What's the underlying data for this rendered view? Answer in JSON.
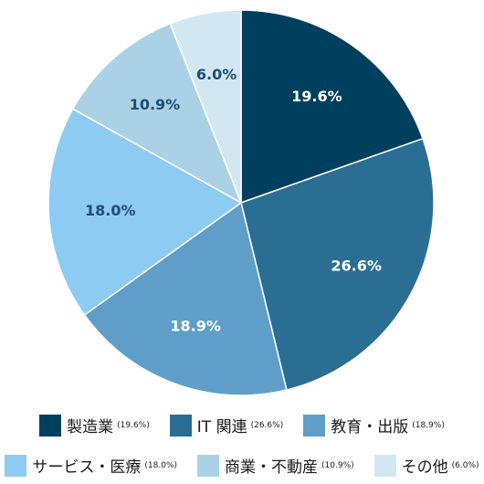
{
  "chart_data": {
    "type": "pie",
    "slices": [
      {
        "label": "製造業",
        "value": 19.6,
        "value_label": "19.6%",
        "legend_pct": "(19.6%)",
        "color": "#00405f",
        "label_color": "#ffffff"
      },
      {
        "label": "IT 関連",
        "value": 26.6,
        "value_label": "26.6%",
        "legend_pct": "(26.6%)",
        "color": "#2b6e94",
        "label_color": "#ffffff"
      },
      {
        "label": "教育・出版",
        "value": 18.9,
        "value_label": "18.9%",
        "legend_pct": "(18.9%)",
        "color": "#5f9ec9",
        "label_color": "#ffffff"
      },
      {
        "label": "サービス・医療",
        "value": 18.0,
        "value_label": "18.0%",
        "legend_pct": "(18.0%)",
        "color": "#8ecbf3",
        "label_color": "#1f4d70"
      },
      {
        "label": "商業・不動産",
        "value": 10.9,
        "value_label": "10.9%",
        "legend_pct": "(10.9%)",
        "color": "#abd1e7",
        "label_color": "#1f4d70"
      },
      {
        "label": "その他",
        "value": 6.0,
        "value_label": "6.0%",
        "legend_pct": "(6.0%)",
        "color": "#d3e7f2",
        "label_color": "#1f4d70"
      }
    ],
    "legend_rows": [
      [
        0,
        1,
        2
      ],
      [
        3,
        4,
        5
      ]
    ]
  }
}
